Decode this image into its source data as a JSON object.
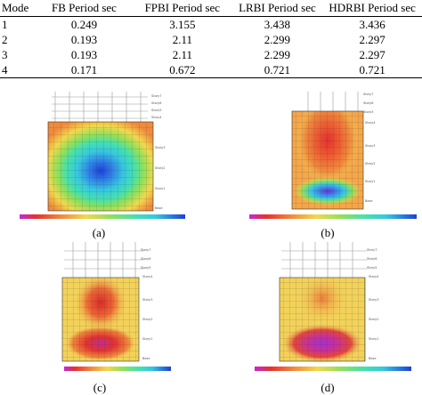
{
  "table": {
    "headers": [
      "Mode",
      "FB Period sec",
      "FPBI Period sec",
      "LRBI Period sec",
      "HDRBI Period sec"
    ],
    "rows": [
      [
        "1",
        "0.249",
        "3.155",
        "3.438",
        "3.436"
      ],
      [
        "2",
        "0.193",
        "2.11",
        "2.299",
        "2.297"
      ],
      [
        "3",
        "0.193",
        "2.11",
        "2.299",
        "2.297"
      ],
      [
        "4",
        "0.171",
        "0.672",
        "0.721",
        "0.721"
      ]
    ]
  },
  "figures": [
    {
      "caption": "(a)",
      "colormap": "blue-center"
    },
    {
      "caption": "(b)",
      "colormap": "red-top-violet-bottom"
    },
    {
      "caption": "(c)",
      "colormap": "red-top-violet-bottom"
    },
    {
      "caption": "(d)",
      "colormap": "violet-bottom"
    }
  ],
  "colors": {
    "yellow": "#f2cf55",
    "orange": "#f08a3c",
    "red": "#e5312f",
    "magenta": "#d2329b",
    "violet": "#8b2fd0",
    "cyan": "#34d3dd",
    "blue": "#2f6fe0",
    "green": "#7fd35a"
  }
}
